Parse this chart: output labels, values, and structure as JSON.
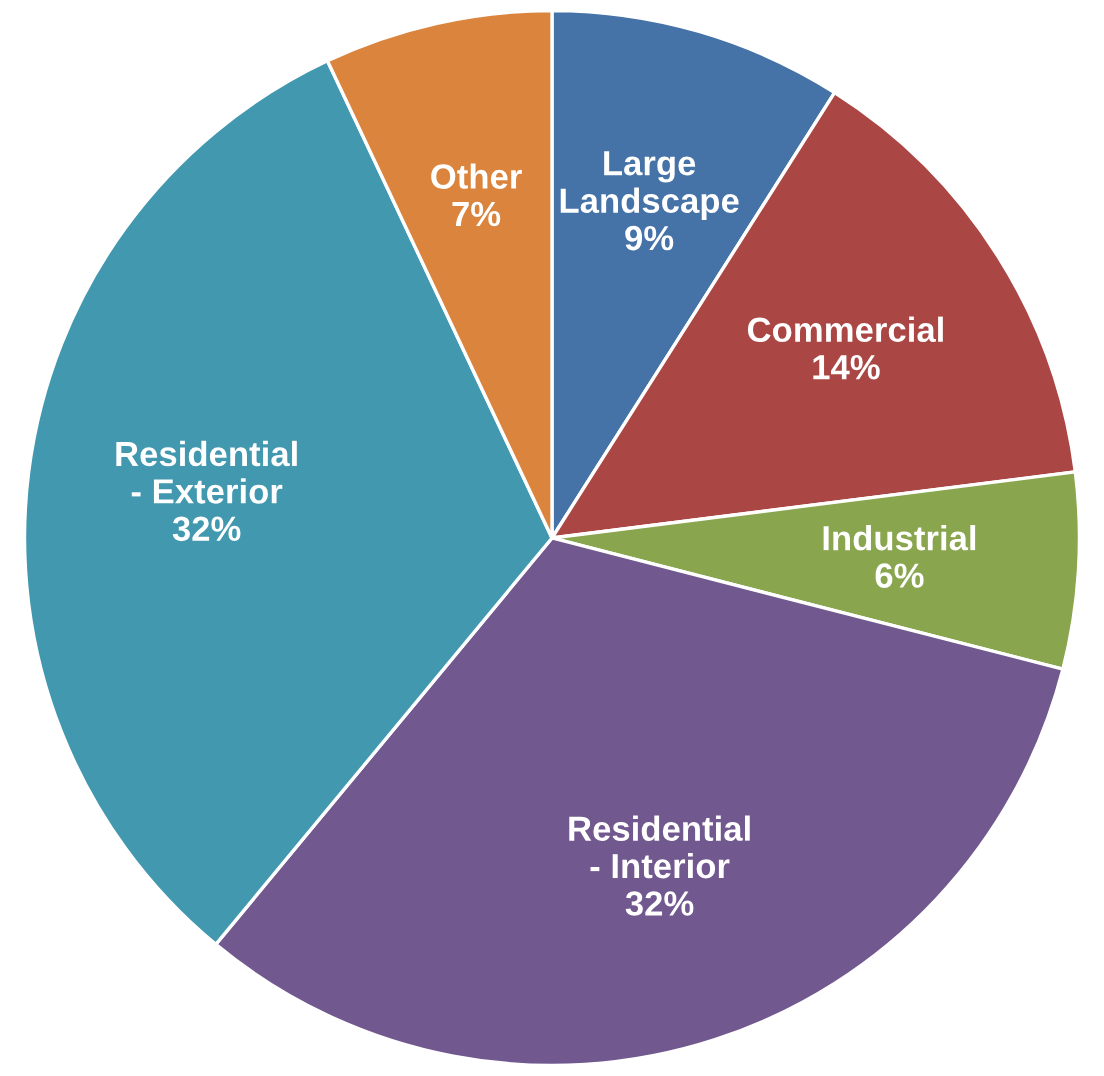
{
  "chart_data": {
    "type": "pie",
    "categories": [
      "Large\nLandscape",
      "Commercial",
      "Industrial",
      "Residential\n- Interior",
      "Residential\n- Exterior",
      "Other"
    ],
    "values": [
      9,
      14,
      6,
      32,
      32,
      7
    ],
    "value_labels": [
      "9%",
      "14%",
      "6%",
      "32%",
      "32%",
      "7%"
    ],
    "colors": [
      "#4572a7",
      "#aa4643",
      "#89a54e",
      "#71588f",
      "#4198af",
      "#db843d"
    ]
  }
}
